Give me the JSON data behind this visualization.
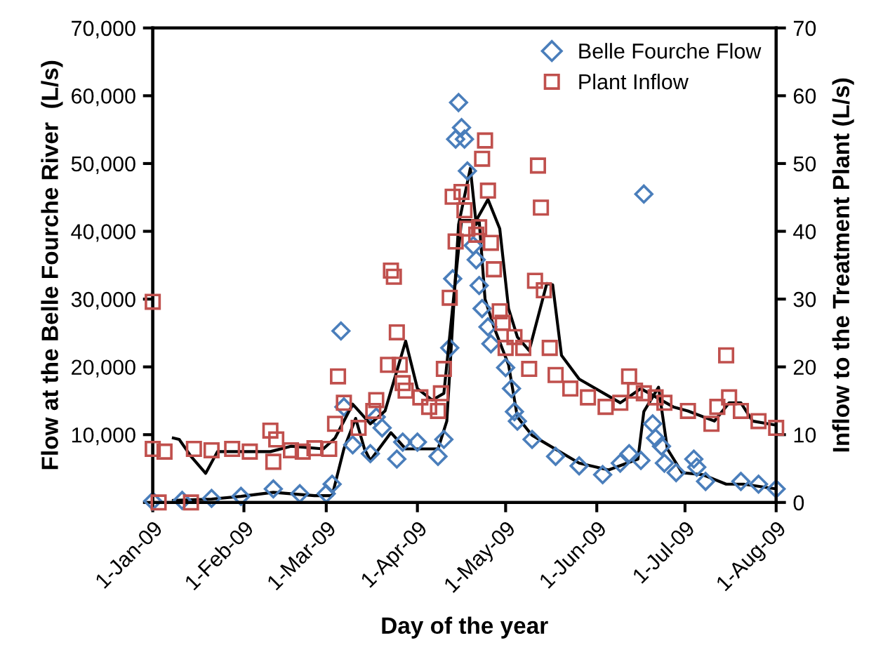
{
  "chart_data": {
    "type": "scatter",
    "xlabel": "Day of the year",
    "ylabel": "Flow at the Belle Fourche River  (L/s)",
    "y2label": "Inflow to the Treatment Plant (L/s)",
    "xlim": [
      "2009-01-01",
      "2009-08-01"
    ],
    "xticks": [
      {
        "value": "2009-01-01",
        "label": "1-Jan-09"
      },
      {
        "value": "2009-02-01",
        "label": "1-Feb-09"
      },
      {
        "value": "2009-03-01",
        "label": "1-Mar-09"
      },
      {
        "value": "2009-04-01",
        "label": "1-Apr-09"
      },
      {
        "value": "2009-05-01",
        "label": "1-May-09"
      },
      {
        "value": "2009-06-01",
        "label": "1-Jun-09"
      },
      {
        "value": "2009-07-01",
        "label": "1-Jul-09"
      },
      {
        "value": "2009-08-01",
        "label": "1-Aug-09"
      }
    ],
    "ylim": [
      0,
      70000
    ],
    "yticks": [
      {
        "value": 0,
        "label": null
      },
      {
        "value": 10000,
        "label": "10,000"
      },
      {
        "value": 20000,
        "label": "20,000"
      },
      {
        "value": 30000,
        "label": "30,000"
      },
      {
        "value": 40000,
        "label": "40,000"
      },
      {
        "value": 50000,
        "label": "50,000"
      },
      {
        "value": 60000,
        "label": "60,000"
      },
      {
        "value": 70000,
        "label": "70,000"
      }
    ],
    "y2lim": [
      0,
      70
    ],
    "y2ticks": [
      0,
      10,
      20,
      30,
      40,
      50,
      60,
      70
    ],
    "grid": false,
    "legend": "top right",
    "series": [
      {
        "name": "Belle Fourche Flow",
        "marker": "diamond",
        "color": "#4a7ebb",
        "x": [
          "2009-01-01",
          "2009-01-11",
          "2009-01-21",
          "2009-01-31",
          "2009-02-11",
          "2009-02-20",
          "2009-03-01",
          "2009-03-03",
          "2009-03-06",
          "2009-03-07",
          "2009-03-10",
          "2009-03-16",
          "2009-03-18",
          "2009-03-20",
          "2009-03-25",
          "2009-03-27",
          "2009-04-01",
          "2009-04-08",
          "2009-04-10",
          "2009-04-12",
          "2009-04-13",
          "2009-04-14",
          "2009-04-15",
          "2009-04-16",
          "2009-04-17",
          "2009-04-18",
          "2009-04-20",
          "2009-04-21",
          "2009-04-22",
          "2009-04-23",
          "2009-04-25",
          "2009-04-26",
          "2009-05-01",
          "2009-05-03",
          "2009-05-04",
          "2009-05-05",
          "2009-05-10",
          "2009-05-18",
          "2009-05-26",
          "2009-06-03",
          "2009-06-09",
          "2009-06-12",
          "2009-06-16",
          "2009-06-17",
          "2009-06-20",
          "2009-06-21",
          "2009-06-23",
          "2009-06-24",
          "2009-06-28",
          "2009-07-04",
          "2009-07-05",
          "2009-07-08",
          "2009-07-20",
          "2009-07-26",
          "2009-08-01"
        ],
        "values": [
          200,
          300,
          600,
          900,
          2000,
          1300,
          1300,
          2700,
          25300,
          14100,
          8500,
          7200,
          12600,
          11000,
          6400,
          8900,
          8900,
          6800,
          9300,
          22800,
          33000,
          53600,
          59000,
          55300,
          53600,
          48900,
          37900,
          35800,
          32000,
          28600,
          25900,
          23400,
          19900,
          16800,
          13400,
          12000,
          9300,
          6800,
          5400,
          4100,
          5800,
          7200,
          6200,
          45500,
          11600,
          9500,
          8300,
          5800,
          4400,
          6400,
          5200,
          3100,
          3100,
          2700,
          2000
        ]
      },
      {
        "name": "Plant Inflow",
        "marker": "square",
        "color": "#c0504d",
        "axis": "y2",
        "x": [
          "2009-01-01",
          "2009-01-01",
          "2009-01-03",
          "2009-01-05",
          "2009-01-14",
          "2009-01-15",
          "2009-01-21",
          "2009-01-28",
          "2009-02-03",
          "2009-02-10",
          "2009-02-11",
          "2009-02-12",
          "2009-02-17",
          "2009-02-21",
          "2009-02-25",
          "2009-03-02",
          "2009-03-04",
          "2009-03-05",
          "2009-03-07",
          "2009-03-12",
          "2009-03-17",
          "2009-03-18",
          "2009-03-22",
          "2009-03-23",
          "2009-03-24",
          "2009-03-25",
          "2009-03-26",
          "2009-03-27",
          "2009-03-28",
          "2009-04-02",
          "2009-04-05",
          "2009-04-08",
          "2009-04-09",
          "2009-04-10",
          "2009-04-12",
          "2009-04-13",
          "2009-04-14",
          "2009-04-16",
          "2009-04-17",
          "2009-04-18",
          "2009-04-21",
          "2009-04-22",
          "2009-04-23",
          "2009-04-24",
          "2009-04-25",
          "2009-04-26",
          "2009-04-27",
          "2009-04-29",
          "2009-04-30",
          "2009-05-01",
          "2009-05-04",
          "2009-05-07",
          "2009-05-09",
          "2009-05-11",
          "2009-05-12",
          "2009-05-13",
          "2009-05-14",
          "2009-05-16",
          "2009-05-18",
          "2009-05-23",
          "2009-05-29",
          "2009-06-04",
          "2009-06-09",
          "2009-06-12",
          "2009-06-14",
          "2009-06-17",
          "2009-06-21",
          "2009-06-24",
          "2009-07-02",
          "2009-07-10",
          "2009-07-12",
          "2009-07-15",
          "2009-07-16",
          "2009-07-20",
          "2009-07-26",
          "2009-08-01"
        ],
        "values": [
          29.6,
          7.9,
          0,
          7.5,
          0,
          7.9,
          7.7,
          7.9,
          7.5,
          10.6,
          6.0,
          9.3,
          7.7,
          7.5,
          8.0,
          7.9,
          11.6,
          18.6,
          14.7,
          11.0,
          13.5,
          15.1,
          20.3,
          34.2,
          33.3,
          25.1,
          20.3,
          17.6,
          16.5,
          15.5,
          14.1,
          13.5,
          16.1,
          19.7,
          30.2,
          45.1,
          38.5,
          45.8,
          43.1,
          40.4,
          39.5,
          40.6,
          50.7,
          53.4,
          46.0,
          38.3,
          34.4,
          28.2,
          26.5,
          22.8,
          24.4,
          22.8,
          19.7,
          32.7,
          49.7,
          43.5,
          31.3,
          22.8,
          18.8,
          16.8,
          15.5,
          14.1,
          14.7,
          18.6,
          16.5,
          16.1,
          15.5,
          14.7,
          13.5,
          11.6,
          14.1,
          21.7,
          15.5,
          13.5,
          12.0,
          11.0
        ]
      },
      {
        "type": "line",
        "marker": "none",
        "line_style": "solid",
        "color": "#000000",
        "x": [
          "2009-01-08",
          "2009-01-21",
          "2009-01-31",
          "2009-02-11",
          "2009-02-25",
          "2009-03-03",
          "2009-03-07",
          "2009-03-11",
          "2009-03-14",
          "2009-03-16",
          "2009-03-23",
          "2009-03-28",
          "2009-04-08",
          "2009-04-11",
          "2009-04-15",
          "2009-04-19",
          "2009-04-21",
          "2009-04-22",
          "2009-04-24",
          "2009-04-27",
          "2009-05-02",
          "2009-05-05",
          "2009-05-10",
          "2009-05-26",
          "2009-06-05",
          "2009-06-15",
          "2009-06-17",
          "2009-06-22",
          "2009-06-25",
          "2009-06-30",
          "2009-07-07",
          "2009-07-15",
          "2009-07-21",
          "2009-08-01"
        ],
        "values": [
          300,
          500,
          900,
          1500,
          1000,
          1000,
          7900,
          12400,
          7900,
          6200,
          10300,
          7900,
          7900,
          12000,
          41000,
          49300,
          41000,
          41600,
          30000,
          25900,
          20300,
          12600,
          9900,
          5800,
          4800,
          6400,
          13400,
          17000,
          7900,
          4400,
          4100,
          2700,
          2700,
          2000
        ]
      },
      {
        "type": "line",
        "marker": "none",
        "line_style": "solid",
        "color": "#000000",
        "axis": "y2",
        "x": [
          "2009-01-08",
          "2009-01-10",
          "2009-01-14",
          "2009-01-19",
          "2009-01-23",
          "2009-02-10",
          "2009-02-17",
          "2009-02-28",
          "2009-03-04",
          "2009-03-10",
          "2009-03-16",
          "2009-03-21",
          "2009-03-28",
          "2009-04-01",
          "2009-04-06",
          "2009-04-10",
          "2009-04-16",
          "2009-04-21",
          "2009-04-25",
          "2009-04-29",
          "2009-05-02",
          "2009-05-05",
          "2009-05-09",
          "2009-05-15",
          "2009-05-17",
          "2009-05-20",
          "2009-05-26",
          "2009-06-09",
          "2009-06-16",
          "2009-06-27",
          "2009-07-02",
          "2009-07-11",
          "2009-07-16",
          "2009-07-20",
          "2009-07-24",
          "2009-08-01"
        ],
        "values": [
          9.5,
          9.3,
          6.8,
          4.3,
          7.5,
          7.5,
          8.3,
          7.9,
          9.5,
          14.5,
          11.6,
          13.5,
          23.8,
          16.8,
          15.1,
          16.1,
          41.6,
          41.6,
          44.7,
          40.4,
          28.6,
          24.4,
          22.4,
          32.3,
          32.1,
          21.7,
          18.2,
          14.7,
          16.8,
          14.1,
          13.5,
          12.0,
          14.7,
          14.7,
          12.0,
          11.4
        ]
      }
    ]
  }
}
